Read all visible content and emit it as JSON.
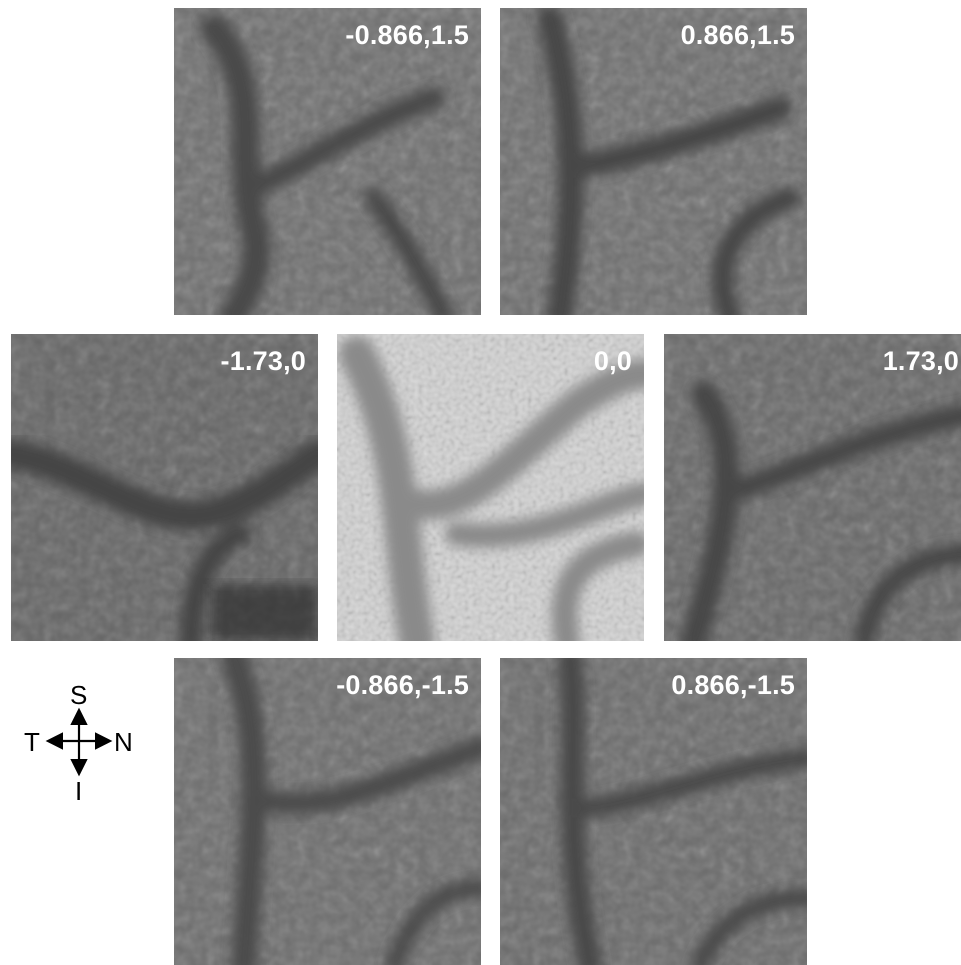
{
  "tiles": [
    {
      "label": "-0.866,1.5"
    },
    {
      "label": "0.866,1.5"
    },
    {
      "label": "-1.73,0"
    },
    {
      "label": "0,0"
    },
    {
      "label": "1.73,0"
    },
    {
      "label": "-0.866,-1.5"
    },
    {
      "label": "0.866,-1.5"
    }
  ],
  "compass": {
    "top": "S",
    "left": "T",
    "right": "N",
    "bottom": "I"
  }
}
